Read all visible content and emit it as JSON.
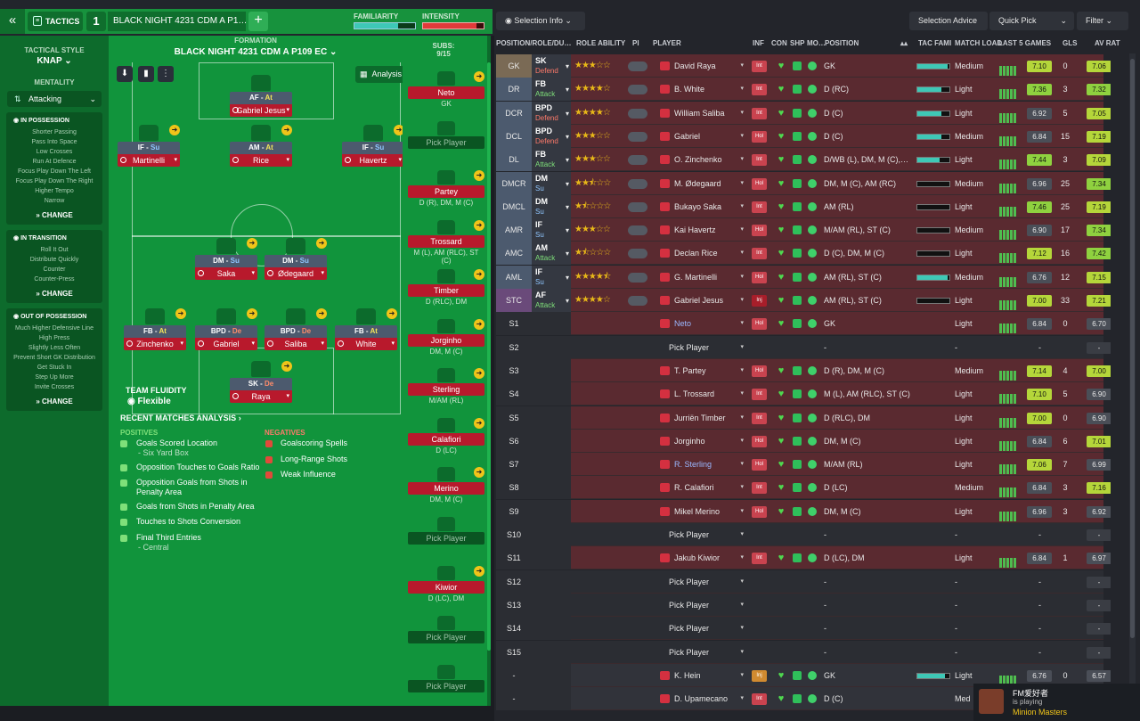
{
  "header": {
    "tactics_label": "TACTICS",
    "slot_number": "1",
    "tactic_name": "BLACK NIGHT 4231 CDM A P1…",
    "familiarity_label": "FAMILIARITY",
    "intensity_label": "INTENSITY",
    "familiarity_level": 0.72,
    "intensity_level": 0.88
  },
  "sidebar": {
    "style_label": "TACTICAL STYLE",
    "style_value": "KNAP",
    "mentality_label": "MENTALITY",
    "mentality_value": "Attacking",
    "possession": {
      "title": "IN POSSESSION",
      "items": [
        "Shorter Passing",
        "Pass Into Space",
        "Low Crosses",
        "Run At Defence",
        "Focus Play Down The Left",
        "Focus Play Down The Right",
        "Higher Tempo",
        "Narrow"
      ],
      "change": "CHANGE"
    },
    "transition": {
      "title": "IN TRANSITION",
      "items": [
        "Roll It Out",
        "Distribute Quickly",
        "Counter",
        "Counter-Press"
      ],
      "change": "CHANGE"
    },
    "out_possession": {
      "title": "OUT OF POSSESSION",
      "items": [
        "Much Higher Defensive Line",
        "High Press",
        "Slightly Less Often",
        "Prevent Short GK Distribution",
        "Get Stuck In",
        "Step Up More",
        "Invite Crosses"
      ],
      "change": "CHANGE"
    }
  },
  "pitch": {
    "formation_label": "FORMATION",
    "formation_name": "BLACK NIGHT 4231 CDM A P109 EC",
    "analysis_btn": "Analysis",
    "fluidity_label": "TEAM FLUIDITY",
    "fluidity_value": "Flexible",
    "players": [
      {
        "role": "AF",
        "duty": "At",
        "name": "Gabriel Jesus"
      },
      {
        "role": "IF",
        "duty": "Su",
        "name": "Martinelli"
      },
      {
        "role": "AM",
        "duty": "At",
        "name": "Rice"
      },
      {
        "role": "IF",
        "duty": "Su",
        "name": "Havertz"
      },
      {
        "role": "DM",
        "duty": "Su",
        "name": "Saka"
      },
      {
        "role": "DM",
        "duty": "Su",
        "name": "Ødegaard"
      },
      {
        "role": "FB",
        "duty": "At",
        "name": "Zinchenko"
      },
      {
        "role": "BPD",
        "duty": "De",
        "name": "Gabriel"
      },
      {
        "role": "BPD",
        "duty": "De",
        "name": "Saliba"
      },
      {
        "role": "FB",
        "duty": "At",
        "name": "White"
      },
      {
        "role": "SK",
        "duty": "De",
        "name": "Raya"
      }
    ]
  },
  "subs": {
    "label": "SUBS:",
    "count": "9/15",
    "slots": [
      {
        "name": "Neto",
        "pos": "GK"
      },
      {
        "name": "Pick Player",
        "pos": ""
      },
      {
        "name": "Partey",
        "pos": "D (R), DM, M (C)"
      },
      {
        "name": "Trossard",
        "pos": "M (L), AM (RLC), ST (C)"
      },
      {
        "name": "Timber",
        "pos": "D (RLC), DM"
      },
      {
        "name": "Jorginho",
        "pos": "DM, M (C)"
      },
      {
        "name": "Sterling",
        "pos": "M/AM (RL)"
      },
      {
        "name": "Calafiori",
        "pos": "D (LC)"
      },
      {
        "name": "Merino",
        "pos": "DM, M (C)"
      },
      {
        "name": "Pick Player",
        "pos": ""
      },
      {
        "name": "Kiwior",
        "pos": "D (LC), DM"
      },
      {
        "name": "Pick Player",
        "pos": ""
      },
      {
        "name": "Pick Player",
        "pos": ""
      }
    ]
  },
  "analysis": {
    "title": "RECENT MATCHES ANALYSIS",
    "positives_label": "POSITIVES",
    "negatives_label": "NEGATIVES",
    "positives": [
      {
        "text": "Goals Scored Location",
        "sub": "- Six Yard Box"
      },
      {
        "text": "Opposition Touches to Goals Ratio",
        "sub": ""
      },
      {
        "text": "Opposition Goals from Shots in Penalty Area",
        "sub": ""
      },
      {
        "text": "Goals from Shots in Penalty Area",
        "sub": ""
      },
      {
        "text": "Touches to Shots Conversion",
        "sub": ""
      },
      {
        "text": "Final Third Entries",
        "sub": "- Central"
      }
    ],
    "negatives": [
      {
        "text": "Goalscoring Spells"
      },
      {
        "text": "Long-Range Shots"
      },
      {
        "text": "Weak Influence"
      }
    ]
  },
  "toolbar": {
    "selection_info": "Selection Info",
    "selection_advice": "Selection Advice",
    "quick_pick": "Quick Pick",
    "filter": "Filter"
  },
  "table": {
    "headers": {
      "pos": "POSITION/ROLE/DU…",
      "ability": "ROLE ABILITY",
      "pi": "PI",
      "player": "PLAYER",
      "inf": "INF",
      "con": "CON",
      "shp": "SHP",
      "mo": "MO…",
      "position": "POSITION",
      "tac": "TAC FAMI",
      "load": "MATCH LOAD",
      "last5": "LAST 5 GAMES",
      "gls": "GLS",
      "avrat": "AV RAT"
    },
    "rows": [
      {
        "pos": "GK",
        "role": "SK",
        "duty": "Defend",
        "stars": 3,
        "player": "David Raya",
        "inf": "Int",
        "position": "GK",
        "tac": 0.95,
        "load": "Medium",
        "l5": "7.10",
        "gls": "0",
        "av": "7.06"
      },
      {
        "pos": "DR",
        "role": "FB",
        "duty": "Attack",
        "stars": 4,
        "player": "B. White",
        "inf": "Int",
        "position": "D (RC)",
        "tac": 0.75,
        "load": "Light",
        "l5": "7.36",
        "gls": "3",
        "av": "7.32"
      },
      {
        "pos": "DCR",
        "role": "BPD",
        "duty": "Defend",
        "stars": 4,
        "player": "William Saliba",
        "inf": "Int",
        "position": "D (C)",
        "tac": 0.75,
        "load": "Light",
        "l5": "6.92",
        "gls": "5",
        "av": "7.05"
      },
      {
        "pos": "DCL",
        "role": "BPD",
        "duty": "Defend",
        "stars": 3,
        "player": "Gabriel",
        "inf": "Hol",
        "position": "D (C)",
        "tac": 0.75,
        "load": "Medium",
        "l5": "6.84",
        "gls": "15",
        "av": "7.19"
      },
      {
        "pos": "DL",
        "role": "FB",
        "duty": "Attack",
        "stars": 3,
        "player": "O. Zinchenko",
        "inf": "Int",
        "position": "D/WB (L), DM, M (C),…",
        "tac": 0.7,
        "load": "Light",
        "l5": "7.44",
        "gls": "3",
        "av": "7.09"
      },
      {
        "pos": "DMCR",
        "role": "DM",
        "duty": "Su",
        "stars": 2.5,
        "player": "M. Ødegaard",
        "inf": "Hol",
        "position": "DM, M (C), AM (RC)",
        "tac": 0.0,
        "load": "Medium",
        "l5": "6.96",
        "gls": "25",
        "av": "7.34"
      },
      {
        "pos": "DMCL",
        "role": "DM",
        "duty": "Su",
        "stars": 1.5,
        "player": "Bukayo Saka",
        "inf": "Int",
        "position": "AM (RL)",
        "tac": 0.0,
        "load": "Light",
        "l5": "7.46",
        "gls": "25",
        "av": "7.19"
      },
      {
        "pos": "AMR",
        "role": "IF",
        "duty": "Su",
        "stars": 3,
        "player": "Kai Havertz",
        "inf": "Hol",
        "position": "M/AM (RL), ST (C)",
        "tac": 0.0,
        "load": "Medium",
        "l5": "6.90",
        "gls": "17",
        "av": "7.34"
      },
      {
        "pos": "AMC",
        "role": "AM",
        "duty": "Attack",
        "stars": 1.5,
        "player": "Declan Rice",
        "inf": "Int",
        "position": "D (C), DM, M (C)",
        "tac": 0.0,
        "load": "Light",
        "l5": "7.12",
        "gls": "16",
        "av": "7.42"
      },
      {
        "pos": "AML",
        "role": "IF",
        "duty": "Su",
        "stars": 4.5,
        "player": "G. Martinelli",
        "inf": "Hol",
        "position": "AM (RL), ST (C)",
        "tac": 0.95,
        "load": "Medium",
        "l5": "6.76",
        "gls": "12",
        "av": "7.15"
      },
      {
        "pos": "STC",
        "role": "AF",
        "duty": "Attack",
        "stars": 4,
        "player": "Gabriel Jesus",
        "inf": "Inj",
        "position": "AM (RL), ST (C)",
        "tac": 0.0,
        "load": "Light",
        "l5": "7.00",
        "gls": "33",
        "av": "7.21"
      },
      {
        "pos": "S1",
        "role": "",
        "duty": "",
        "stars": 0,
        "player": "Neto",
        "inf": "Hol",
        "position": "GK",
        "tac": -1,
        "load": "Light",
        "l5": "6.84",
        "gls": "0",
        "av": "6.70"
      },
      {
        "pos": "S2",
        "role": "",
        "duty": "",
        "stars": 0,
        "player": "Pick Player",
        "inf": "",
        "position": "-",
        "tac": -1,
        "load": "-",
        "l5": "-",
        "gls": "",
        "av": "-"
      },
      {
        "pos": "S3",
        "role": "",
        "duty": "",
        "stars": 0,
        "player": "T. Partey",
        "inf": "Hol",
        "position": "D (R), DM, M (C)",
        "tac": -1,
        "load": "Medium",
        "l5": "7.14",
        "gls": "4",
        "av": "7.00"
      },
      {
        "pos": "S4",
        "role": "",
        "duty": "",
        "stars": 0,
        "player": "L. Trossard",
        "inf": "Int",
        "position": "M (L), AM (RLC), ST (C)",
        "tac": -1,
        "load": "Light",
        "l5": "7.10",
        "gls": "5",
        "av": "6.90"
      },
      {
        "pos": "S5",
        "role": "",
        "duty": "",
        "stars": 0,
        "player": "Jurriën Timber",
        "inf": "Int",
        "position": "D (RLC), DM",
        "tac": -1,
        "load": "Light",
        "l5": "7.00",
        "gls": "0",
        "av": "6.90"
      },
      {
        "pos": "S6",
        "role": "",
        "duty": "",
        "stars": 0,
        "player": "Jorginho",
        "inf": "Hol",
        "position": "DM, M (C)",
        "tac": -1,
        "load": "Light",
        "l5": "6.84",
        "gls": "6",
        "av": "7.01"
      },
      {
        "pos": "S7",
        "role": "",
        "duty": "",
        "stars": 0,
        "player": "R. Sterling",
        "inf": "Hol",
        "position": "M/AM (RL)",
        "tac": -1,
        "load": "Light",
        "l5": "7.06",
        "gls": "7",
        "av": "6.99"
      },
      {
        "pos": "S8",
        "role": "",
        "duty": "",
        "stars": 0,
        "player": "R. Calafiori",
        "inf": "Int",
        "position": "D (LC)",
        "tac": -1,
        "load": "Medium",
        "l5": "6.84",
        "gls": "3",
        "av": "7.16"
      },
      {
        "pos": "S9",
        "role": "",
        "duty": "",
        "stars": 0,
        "player": "Mikel Merino",
        "inf": "Hol",
        "position": "DM, M (C)",
        "tac": -1,
        "load": "Light",
        "l5": "6.96",
        "gls": "3",
        "av": "6.92"
      },
      {
        "pos": "S10",
        "role": "",
        "duty": "",
        "stars": 0,
        "player": "Pick Player",
        "inf": "",
        "position": "-",
        "tac": -1,
        "load": "-",
        "l5": "-",
        "gls": "",
        "av": "-"
      },
      {
        "pos": "S11",
        "role": "",
        "duty": "",
        "stars": 0,
        "player": "Jakub Kiwior",
        "inf": "Int",
        "position": "D (LC), DM",
        "tac": -1,
        "load": "Light",
        "l5": "6.84",
        "gls": "1",
        "av": "6.97"
      },
      {
        "pos": "S12",
        "role": "",
        "duty": "",
        "stars": 0,
        "player": "Pick Player",
        "inf": "",
        "position": "-",
        "tac": -1,
        "load": "-",
        "l5": "-",
        "gls": "",
        "av": "-"
      },
      {
        "pos": "S13",
        "role": "",
        "duty": "",
        "stars": 0,
        "player": "Pick Player",
        "inf": "",
        "position": "-",
        "tac": -1,
        "load": "-",
        "l5": "-",
        "gls": "",
        "av": "-"
      },
      {
        "pos": "S14",
        "role": "",
        "duty": "",
        "stars": 0,
        "player": "Pick Player",
        "inf": "",
        "position": "-",
        "tac": -1,
        "load": "-",
        "l5": "-",
        "gls": "",
        "av": "-"
      },
      {
        "pos": "S15",
        "role": "",
        "duty": "",
        "stars": 0,
        "player": "Pick Player",
        "inf": "",
        "position": "-",
        "tac": -1,
        "load": "-",
        "l5": "-",
        "gls": "",
        "av": "-"
      },
      {
        "pos": "-",
        "role": "",
        "duty": "",
        "stars": 0,
        "player": "K. Hein",
        "inf": "Inj",
        "position": "GK",
        "tac": 0.85,
        "load": "Light",
        "l5": "6.76",
        "gls": "0",
        "av": "6.57"
      },
      {
        "pos": "-",
        "role": "",
        "duty": "",
        "stars": 0,
        "player": "D. Upamecano",
        "inf": "Int",
        "position": "D (C)",
        "tac": -1,
        "load": "Med",
        "l5": "",
        "gls": "",
        "av": ""
      }
    ]
  },
  "notification": {
    "name": "FM爱好者",
    "status": "is playing",
    "game": "Minion Masters"
  },
  "colors": {
    "pitch": "#11943c",
    "sidebar": "#0d6b2c",
    "row_red": "#5a2a30",
    "row_dark": "#2b2d33",
    "rating_green": "#9acb3a"
  }
}
